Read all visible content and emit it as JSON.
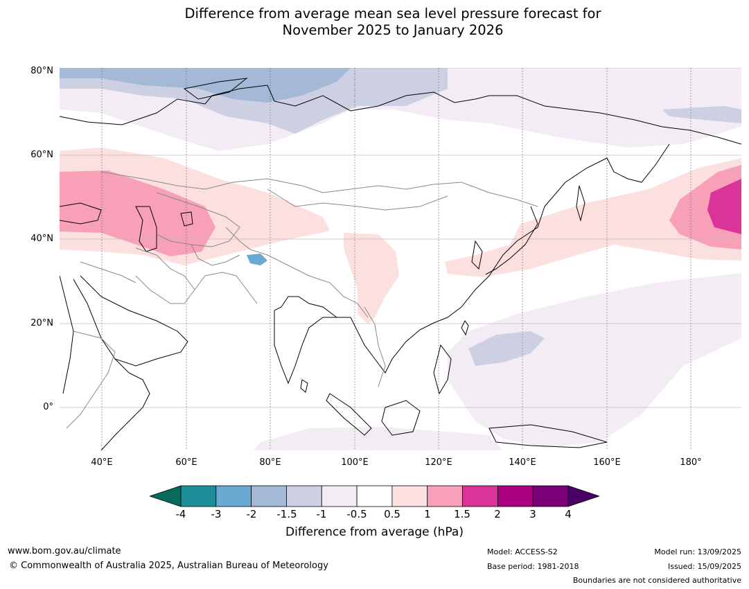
{
  "title_line1": "Difference from average mean sea level pressure forecast for",
  "title_line2": "November 2025 to January 2026",
  "map": {
    "lat_labels": [
      "80°N",
      "60°N",
      "40°N",
      "20°N",
      "0°"
    ],
    "lon_labels": [
      "40°E",
      "60°E",
      "80°E",
      "100°E",
      "120°E",
      "140°E",
      "160°E",
      "180°"
    ],
    "anomaly_colors": {
      "low_blue": "#a4b9d6",
      "low_lavender": "#cdd0e3",
      "near_neg": "#f3ecf4",
      "near_pos": "#fce0e0",
      "high_pink": "#f8a0b8",
      "high_magenta": "#da3399"
    }
  },
  "colorbar": {
    "tick_labels": [
      "-4",
      "-3",
      "-2",
      "-1.5",
      "-1",
      "-0.5",
      "0.5",
      "1",
      "1.5",
      "2",
      "3",
      "4"
    ],
    "colors": [
      "#1c8e98",
      "#6aaad2",
      "#a4b9d6",
      "#cdd0e3",
      "#f3ecf4",
      "#ffffff",
      "#fde0e0",
      "#f89fb9",
      "#da3399",
      "#ab0080",
      "#7b0078"
    ],
    "under_color": "#076a5c",
    "over_color": "#4a0066",
    "label": "Difference from average (hPa)"
  },
  "footer": {
    "website": "www.bom.gov.au/climate",
    "copyright": "© Commonwealth of Australia 2025, Australian Bureau of Meteorology",
    "model": "Model: ACCESS-S2",
    "base_period": "Base period: 1981-2018",
    "model_run": "Model run: 13/09/2025",
    "issued": "Issued: 15/09/2025",
    "disclaimer": "Boundaries are not considered authoritative"
  }
}
